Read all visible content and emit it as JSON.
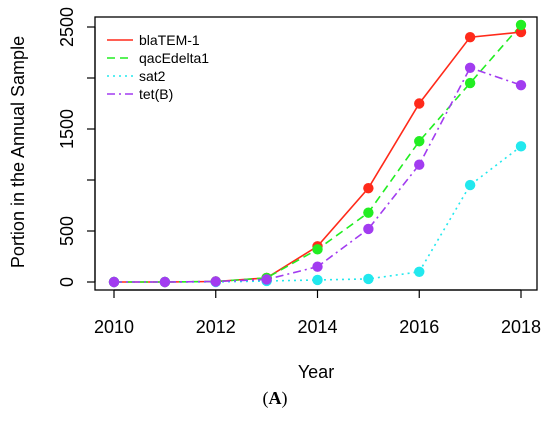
{
  "chart_data": {
    "type": "line",
    "title": "",
    "xlabel": "Year",
    "ylabel": "Portion in the Annual Sample",
    "x": [
      2010,
      2011,
      2012,
      2013,
      2014,
      2015,
      2016,
      2017,
      2018
    ],
    "xlim": [
      2010,
      2018
    ],
    "ylim": [
      0,
      2500
    ],
    "x_ticks": [
      "2010",
      "2012",
      "2014",
      "2016",
      "2018"
    ],
    "y_ticks": [
      "0",
      "500",
      "1500",
      "2500"
    ],
    "grid": false,
    "legend_position": "top-left",
    "series": [
      {
        "name": "blaTEM-1",
        "color": "#ff2a1a",
        "line_style": "solid",
        "values": [
          0,
          0,
          5,
          40,
          350,
          920,
          1750,
          2400,
          2450
        ]
      },
      {
        "name": "qacEdelta1",
        "color": "#22ee22",
        "line_style": "dashed",
        "values": [
          0,
          0,
          5,
          40,
          320,
          680,
          1380,
          1950,
          2520
        ]
      },
      {
        "name": "sat2",
        "color": "#22e8ee",
        "line_style": "dotted",
        "values": [
          0,
          0,
          0,
          10,
          20,
          30,
          100,
          950,
          1330
        ]
      },
      {
        "name": "tet(B)",
        "color": "#a23cf0",
        "line_style": "dashdot",
        "values": [
          0,
          0,
          5,
          25,
          150,
          520,
          1150,
          2100,
          1930
        ]
      }
    ]
  },
  "caption": {
    "open": "(",
    "letter": "A",
    "close": ")"
  }
}
